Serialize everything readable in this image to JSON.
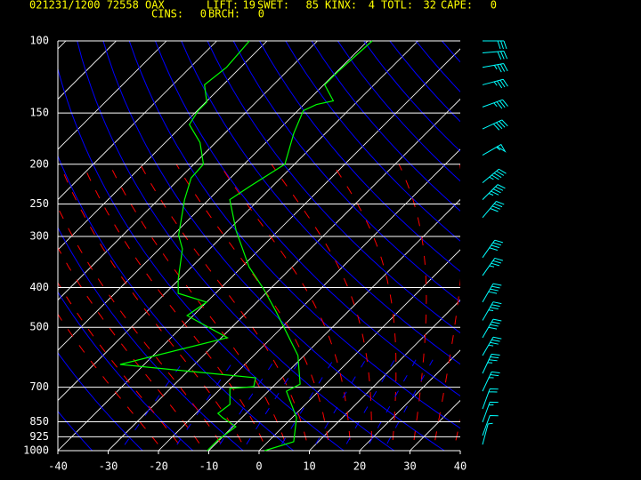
{
  "chart_data": {
    "type": "skewt",
    "title": "021231/1200 72558  OAX",
    "indices": [
      {
        "label": "LIFT:",
        "value": 19
      },
      {
        "label": "SWET:",
        "value": 85
      },
      {
        "label": "KINX:",
        "value": 4
      },
      {
        "label": "TOTL:",
        "value": 32
      },
      {
        "label": "CAPE:",
        "value": 0
      },
      {
        "label": "CINS:",
        "value": 0
      },
      {
        "label": "BRCH:",
        "value": 0
      }
    ],
    "log_y": true,
    "ylim": [
      1000,
      100
    ],
    "yticks": [
      1000,
      925,
      850,
      700,
      500,
      400,
      300,
      250,
      200,
      150,
      100
    ],
    "xlim": [
      -40,
      40
    ],
    "xticks": [
      -40,
      -30,
      -20,
      -10,
      0,
      10,
      20,
      30,
      40
    ],
    "series": [
      {
        "color": "#00ff00",
        "pressure": [
          1000,
          951,
          831,
          716,
          688,
          586,
          505,
          457,
          403,
          356,
          291,
          244,
          227,
          200,
          168,
          148,
          143,
          140,
          128,
          119,
          100
        ],
        "values": [
          1.1,
          5.1,
          0.9,
          -6.4,
          -5.1,
          -11.2,
          -19.1,
          -24.4,
          -31.3,
          -38.6,
          -48.3,
          -55.8,
          -54.5,
          -51.9,
          -56.3,
          -58.9,
          -57.5,
          -54.9,
          -59.8,
          -59.8,
          -59.1
        ]
      },
      {
        "color": "#00ff00",
        "pressure": [
          1000,
          942,
          874,
          831,
          811,
          771,
          705,
          698,
          664,
          616,
          530,
          468,
          434,
          413,
          383,
          322,
          298,
          244,
          216,
          200,
          177,
          160,
          148,
          141,
          128,
          116,
          100
        ],
        "values": [
          -10.3,
          -10.3,
          -9.4,
          -13.8,
          -15.6,
          -15,
          -18.2,
          -13.8,
          -15.2,
          -44.8,
          -28.8,
          -41.2,
          -40,
          -47.4,
          -50.1,
          -55.4,
          -58.9,
          -64.8,
          -67.8,
          -68.1,
          -73.1,
          -78.8,
          -79.8,
          -79.8,
          -83.7,
          -82.8,
          -83.5
        ]
      }
    ],
    "winds": {
      "color": "#00ffff",
      "pressure": [
        100,
        107,
        116,
        128,
        145,
        164,
        190,
        222,
        244,
        270,
        338,
        374,
        434,
        481,
        530,
        586,
        648,
        716,
        791,
        852,
        919,
        966
      ],
      "direction": [
        90,
        85,
        80,
        75,
        70,
        65,
        60,
        50,
        45,
        40,
        35,
        35,
        30,
        30,
        30,
        30,
        25,
        25,
        20,
        20,
        20,
        15
      ],
      "speed": [
        30,
        30,
        35,
        35,
        35,
        40,
        55,
        45,
        45,
        40,
        40,
        35,
        40,
        35,
        40,
        35,
        35,
        25,
        20,
        15,
        10,
        5
      ]
    }
  }
}
